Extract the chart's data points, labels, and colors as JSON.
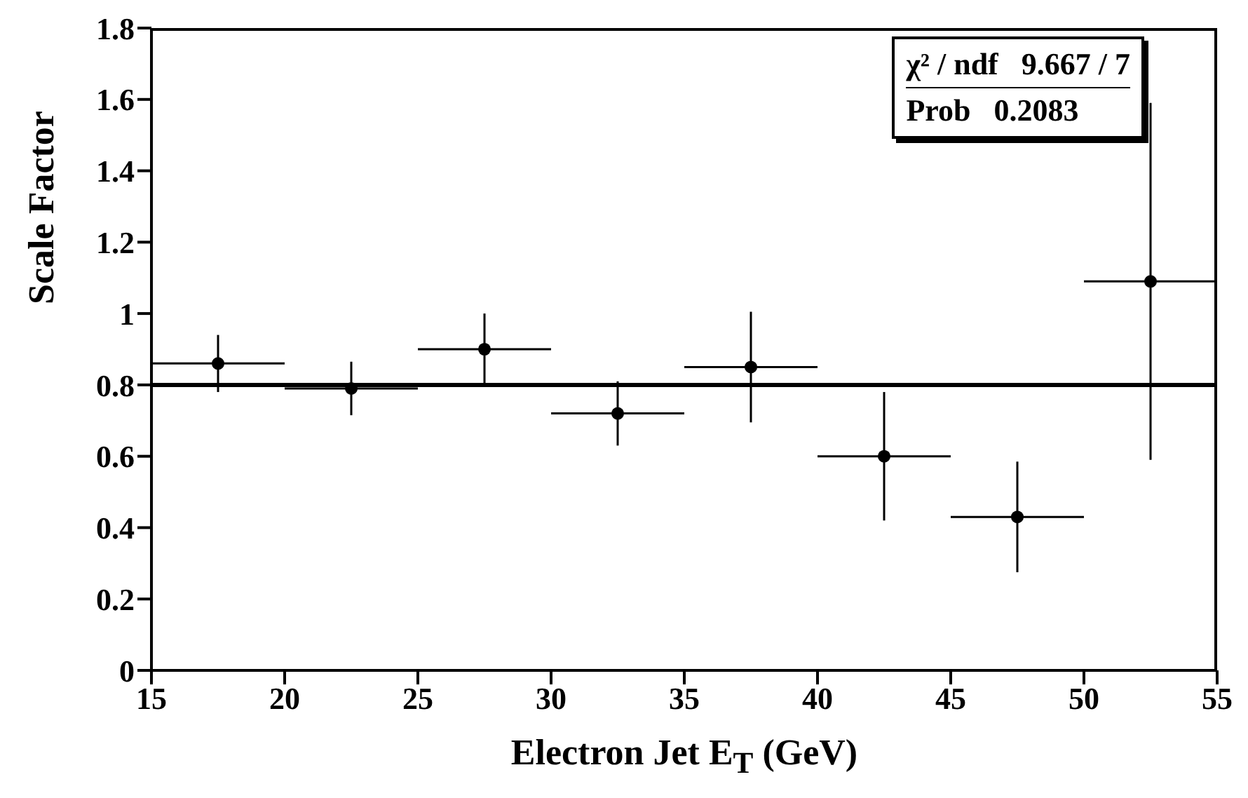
{
  "chart_data": {
    "type": "scatter",
    "xlabel": "Electron Jet E$_{T}$ (GeV)",
    "ylabel": "Scale Factor",
    "xlim": [
      15,
      55
    ],
    "ylim": [
      0,
      1.8
    ],
    "xticks": [
      15,
      20,
      25,
      30,
      35,
      40,
      45,
      50,
      55
    ],
    "yticks": [
      0,
      0.2,
      0.4,
      0.6,
      0.8,
      1,
      1.2,
      1.4,
      1.6,
      1.8
    ],
    "series": [
      {
        "color": "#000000",
        "marker": "circle",
        "x": [
          17.5,
          22.5,
          27.5,
          32.5,
          37.5,
          42.5,
          47.5,
          52.5
        ],
        "values": [
          0.86,
          0.79,
          0.9,
          0.72,
          0.85,
          0.6,
          0.43,
          1.09
        ],
        "errors": [
          0.08,
          0.075,
          0.1,
          0.09,
          0.155,
          0.18,
          0.155,
          0.5
        ],
        "xerrors": [
          2.5,
          2.5,
          2.5,
          2.5,
          2.5,
          2.5,
          2.5,
          2.5
        ]
      },
      {
        "type": "line",
        "color": "#000000",
        "line_style": "solid",
        "marker": "none",
        "x": [
          15,
          55
        ],
        "values": [
          0.8,
          0.8
        ]
      }
    ],
    "annotations": [
      "χ² / ndf   9.667 / 7",
      "Prob   0.2083"
    ]
  }
}
